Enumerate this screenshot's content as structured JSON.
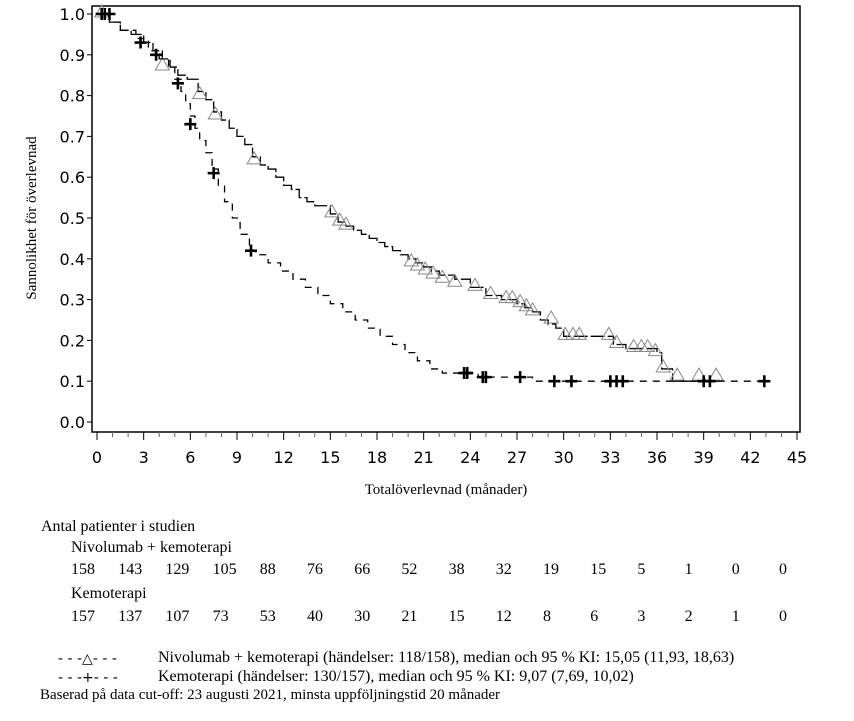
{
  "chart_data": {
    "type": "line",
    "subtype": "kaplan-meier",
    "title": "",
    "xlabel": "Totalöverlevnad (månader)",
    "ylabel": "Sannolikhet för överlevnad",
    "xlim": [
      0,
      45
    ],
    "ylim": [
      0.0,
      1.0
    ],
    "x_ticks": [
      0,
      3,
      6,
      9,
      12,
      15,
      18,
      21,
      24,
      27,
      30,
      33,
      36,
      39,
      42,
      45
    ],
    "x_tick_labels": [
      "0",
      "3",
      "6",
      "9",
      "12",
      "15",
      "18",
      "21",
      "24",
      "27",
      "30",
      "33",
      "36",
      "39",
      "42",
      "45"
    ],
    "y_ticks": [
      0.0,
      0.1,
      0.2,
      0.3,
      0.4,
      0.5,
      0.6,
      0.7,
      0.8,
      0.9,
      1.0
    ],
    "y_tick_labels": [
      "0.0",
      "0.1",
      "0.2",
      "0.3",
      "0.4",
      "0.5",
      "0.6",
      "0.7",
      "0.8",
      "0.9",
      "1.0"
    ],
    "grid": false,
    "series": [
      {
        "name": "Nivolumab + kemoterapi",
        "line_style": "solid",
        "censor_marker": "triangle",
        "x": [
          0,
          0.8,
          1.5,
          2.2,
          3.0,
          3.6,
          4.2,
          4.7,
          5.2,
          5.8,
          6.5,
          7.0,
          7.5,
          8.0,
          8.5,
          9.0,
          9.5,
          10.0,
          10.5,
          11.0,
          11.5,
          12.0,
          12.5,
          13.0,
          13.5,
          14.0,
          15.0,
          15.5,
          16.0,
          16.5,
          17.0,
          17.5,
          18.0,
          18.5,
          19.0,
          19.5,
          20.0,
          20.5,
          21.0,
          21.5,
          22.0,
          23.0,
          24.0,
          25.0,
          26.0,
          26.5,
          27.0,
          27.5,
          28.0,
          28.5,
          29.0,
          29.5,
          30.0,
          32.5,
          33.2,
          34.0,
          36.0,
          36.3,
          37.0,
          40.0
        ],
        "y": [
          1.0,
          0.98,
          0.96,
          0.95,
          0.93,
          0.91,
          0.89,
          0.87,
          0.85,
          0.84,
          0.81,
          0.79,
          0.76,
          0.74,
          0.72,
          0.7,
          0.68,
          0.65,
          0.63,
          0.62,
          0.6,
          0.58,
          0.57,
          0.55,
          0.54,
          0.53,
          0.51,
          0.49,
          0.48,
          0.47,
          0.46,
          0.45,
          0.44,
          0.43,
          0.42,
          0.41,
          0.4,
          0.39,
          0.38,
          0.37,
          0.36,
          0.35,
          0.33,
          0.31,
          0.3,
          0.3,
          0.29,
          0.28,
          0.27,
          0.25,
          0.24,
          0.23,
          0.21,
          0.21,
          0.19,
          0.18,
          0.17,
          0.13,
          0.1,
          0.1
        ],
        "censor_x": [
          0.3,
          4.2,
          6.6,
          7.6,
          10.1,
          15.1,
          15.6,
          16.0,
          20.2,
          20.6,
          21.1,
          21.6,
          22.2,
          23.0,
          24.3,
          25.3,
          26.3,
          26.7,
          27.2,
          27.6,
          28.0,
          29.2,
          30.1,
          30.6,
          31.0,
          32.9,
          33.4,
          34.5,
          35.0,
          35.4,
          35.9,
          36.4,
          37.3,
          38.7,
          39.8
        ],
        "censor_y": [
          1.0,
          0.87,
          0.8,
          0.75,
          0.64,
          0.51,
          0.49,
          0.48,
          0.39,
          0.38,
          0.37,
          0.36,
          0.35,
          0.34,
          0.33,
          0.31,
          0.3,
          0.3,
          0.29,
          0.28,
          0.27,
          0.25,
          0.21,
          0.21,
          0.21,
          0.21,
          0.19,
          0.18,
          0.18,
          0.18,
          0.17,
          0.13,
          0.11,
          0.11,
          0.11
        ]
      },
      {
        "name": "Kemoterapi",
        "line_style": "dashed",
        "censor_marker": "plus",
        "x": [
          0,
          0.8,
          1.5,
          2.5,
          3.3,
          4.0,
          4.6,
          5.0,
          5.4,
          5.7,
          6.0,
          6.3,
          6.6,
          7.0,
          7.4,
          7.8,
          8.2,
          8.7,
          9.2,
          9.8,
          10.2,
          11.0,
          11.8,
          12.6,
          13.4,
          14.2,
          15.0,
          15.8,
          16.6,
          17.4,
          18.2,
          19.0,
          19.8,
          20.6,
          21.4,
          22.2,
          23.0,
          23.8,
          24.5,
          26.0,
          28.0,
          43.0
        ],
        "y": [
          1.0,
          0.98,
          0.96,
          0.94,
          0.91,
          0.89,
          0.87,
          0.84,
          0.81,
          0.78,
          0.75,
          0.72,
          0.69,
          0.66,
          0.62,
          0.58,
          0.54,
          0.5,
          0.46,
          0.42,
          0.41,
          0.39,
          0.37,
          0.35,
          0.33,
          0.31,
          0.29,
          0.27,
          0.25,
          0.23,
          0.21,
          0.19,
          0.17,
          0.15,
          0.13,
          0.12,
          0.12,
          0.12,
          0.11,
          0.11,
          0.1,
          0.1
        ],
        "censor_x": [
          0.3,
          0.5,
          0.8,
          2.8,
          3.8,
          5.2,
          6.0,
          7.5,
          9.9,
          23.6,
          23.8,
          24.8,
          25.0,
          27.2,
          29.4,
          30.5,
          33.0,
          33.4,
          33.8,
          39.0,
          39.4,
          42.9
        ],
        "censor_y": [
          1.0,
          1.0,
          1.0,
          0.93,
          0.9,
          0.83,
          0.73,
          0.61,
          0.42,
          0.12,
          0.12,
          0.11,
          0.11,
          0.11,
          0.1,
          0.1,
          0.1,
          0.1,
          0.1,
          0.1,
          0.1,
          0.1
        ]
      }
    ],
    "legend_placement": "bottom",
    "legend": [
      {
        "symbol": "- - -△- - -",
        "text": "Nivolumab + kemoterapi (händelser: 118/158), median och 95 % KI: 15,05 (11,93, 18,63)"
      },
      {
        "symbol": "- - -+- - -",
        "text": "Kemoterapi (händelser: 130/157), median och 95 % KI: 9,07 (7,69, 10,02)"
      }
    ],
    "risk_table": {
      "title": "Antal patienter i studien",
      "times": [
        0,
        3,
        6,
        9,
        12,
        15,
        18,
        21,
        24,
        27,
        30,
        33,
        36,
        39,
        42,
        45
      ],
      "groups": [
        {
          "name": "Nivolumab + kemoterapi",
          "values": [
            "158",
            "143",
            "129",
            "105",
            "88",
            "76",
            "66",
            "52",
            "38",
            "32",
            "19",
            "15",
            "5",
            "1",
            "0",
            "0"
          ]
        },
        {
          "name": "Kemoterapi",
          "values": [
            "157",
            "137",
            "107",
            "73",
            "53",
            "40",
            "30",
            "21",
            "15",
            "12",
            "8",
            "6",
            "3",
            "2",
            "1",
            "0"
          ]
        }
      ]
    },
    "footnote": "Baserad på data cut-off: 23 augusti 2021, minsta uppföljningstid 20 månader"
  }
}
